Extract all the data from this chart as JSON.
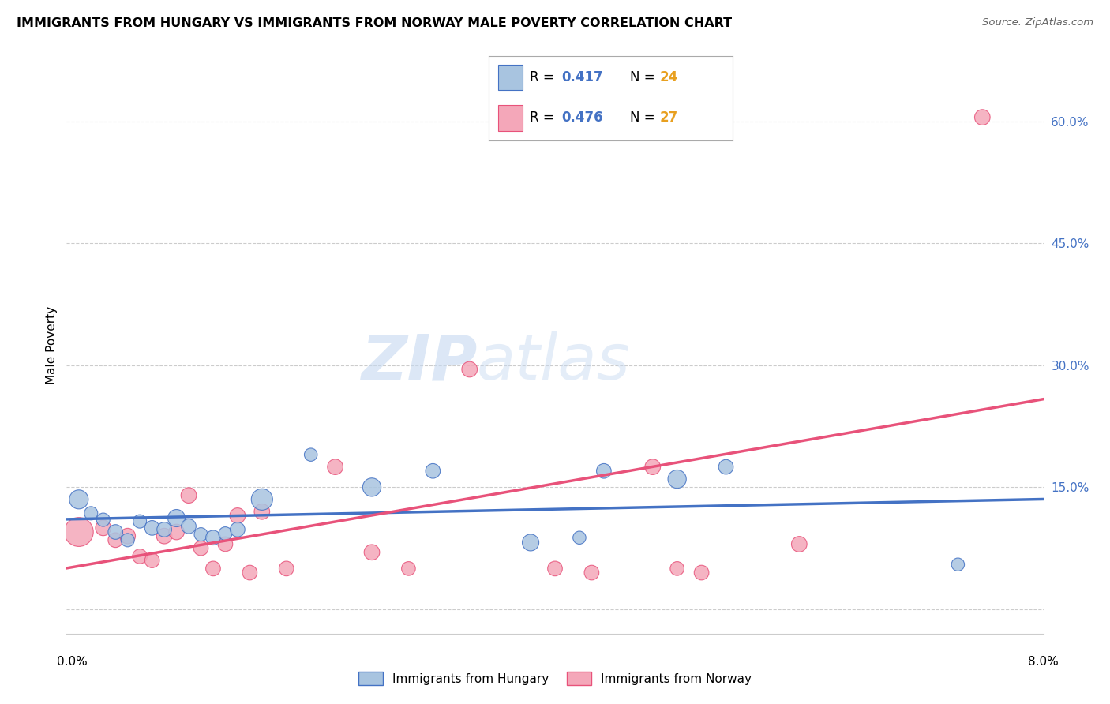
{
  "title": "IMMIGRANTS FROM HUNGARY VS IMMIGRANTS FROM NORWAY MALE POVERTY CORRELATION CHART",
  "source": "Source: ZipAtlas.com",
  "ylabel": "Male Poverty",
  "xlim": [
    0.0,
    0.08
  ],
  "ylim": [
    -0.03,
    0.68
  ],
  "yticks": [
    0.0,
    0.15,
    0.3,
    0.45,
    0.6
  ],
  "ytick_labels": [
    "",
    "15.0%",
    "30.0%",
    "45.0%",
    "60.0%"
  ],
  "hungary_R": 0.417,
  "hungary_N": 24,
  "norway_R": 0.476,
  "norway_N": 27,
  "hungary_color": "#a8c4e0",
  "norway_color": "#f4a7b9",
  "hungary_line_color": "#4472c4",
  "norway_line_color": "#e8527a",
  "watermark_zip": "ZIP",
  "watermark_atlas": "atlas",
  "hungary_x": [
    0.001,
    0.002,
    0.003,
    0.004,
    0.005,
    0.006,
    0.007,
    0.008,
    0.009,
    0.01,
    0.011,
    0.012,
    0.013,
    0.014,
    0.016,
    0.02,
    0.025,
    0.03,
    0.038,
    0.042,
    0.044,
    0.05,
    0.054,
    0.073
  ],
  "hungary_y": [
    0.135,
    0.118,
    0.11,
    0.095,
    0.085,
    0.108,
    0.1,
    0.098,
    0.112,
    0.102,
    0.092,
    0.088,
    0.093,
    0.098,
    0.135,
    0.19,
    0.15,
    0.17,
    0.082,
    0.088,
    0.17,
    0.16,
    0.175,
    0.055
  ],
  "hungary_size": [
    300,
    150,
    150,
    180,
    150,
    150,
    180,
    180,
    250,
    180,
    150,
    180,
    150,
    180,
    380,
    140,
    280,
    180,
    230,
    140,
    180,
    280,
    180,
    140
  ],
  "norway_x": [
    0.001,
    0.003,
    0.004,
    0.005,
    0.006,
    0.007,
    0.008,
    0.009,
    0.01,
    0.011,
    0.012,
    0.013,
    0.014,
    0.015,
    0.016,
    0.018,
    0.022,
    0.025,
    0.028,
    0.033,
    0.04,
    0.043,
    0.048,
    0.05,
    0.052,
    0.06,
    0.075
  ],
  "norway_y": [
    0.095,
    0.1,
    0.085,
    0.09,
    0.065,
    0.06,
    0.09,
    0.095,
    0.14,
    0.075,
    0.05,
    0.08,
    0.115,
    0.045,
    0.12,
    0.05,
    0.175,
    0.07,
    0.05,
    0.295,
    0.05,
    0.045,
    0.175,
    0.05,
    0.045,
    0.08,
    0.605
  ],
  "norway_size": [
    700,
    200,
    180,
    200,
    180,
    180,
    200,
    200,
    200,
    180,
    180,
    180,
    200,
    180,
    200,
    180,
    200,
    200,
    160,
    200,
    180,
    180,
    200,
    160,
    180,
    200,
    200
  ]
}
